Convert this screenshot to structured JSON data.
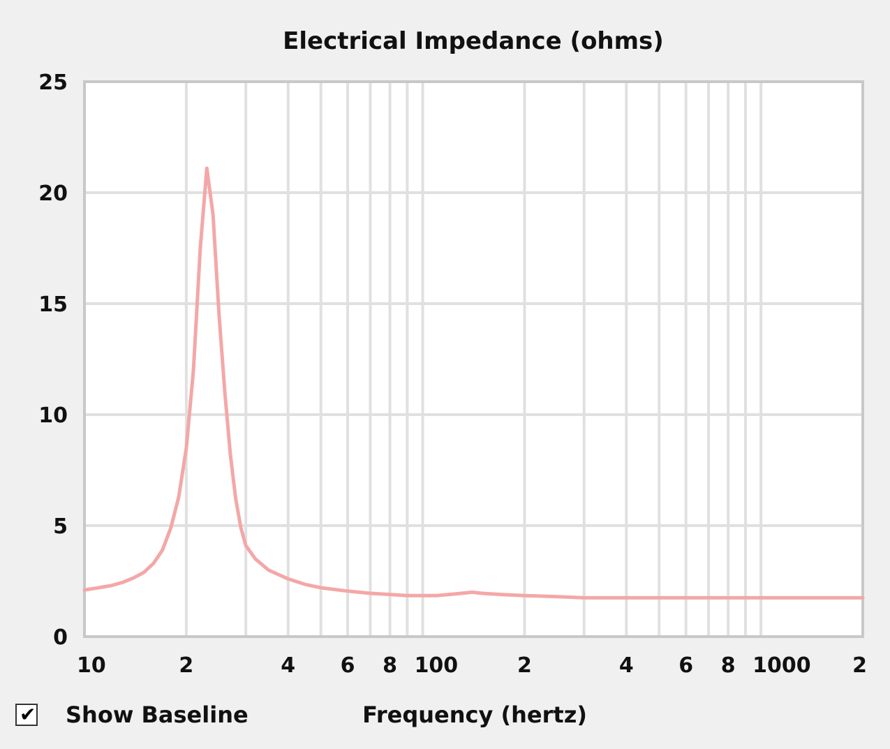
{
  "chart_data": {
    "type": "line",
    "title": "Electrical Impedance (ohms)",
    "xlabel": "Frequency (hertz)",
    "ylabel": "",
    "x_scale": "log",
    "xlim": [
      10,
      2000
    ],
    "ylim": [
      0,
      25
    ],
    "grid": true,
    "y_ticks": [
      0,
      5,
      10,
      15,
      20,
      25
    ],
    "x_tick_labels": [
      {
        "value": 10,
        "label": "10"
      },
      {
        "value": 20,
        "label": "2"
      },
      {
        "value": 40,
        "label": "4"
      },
      {
        "value": 60,
        "label": "6"
      },
      {
        "value": 80,
        "label": "8"
      },
      {
        "value": 100,
        "label": "100"
      },
      {
        "value": 200,
        "label": "2"
      },
      {
        "value": 400,
        "label": "4"
      },
      {
        "value": 600,
        "label": "6"
      },
      {
        "value": 800,
        "label": "8"
      },
      {
        "value": 1000,
        "label": "1000"
      },
      {
        "value": 2000,
        "label": "2"
      }
    ],
    "x_gridlines": [
      20,
      30,
      40,
      50,
      60,
      70,
      80,
      90,
      100,
      200,
      300,
      400,
      500,
      600,
      700,
      800,
      900,
      1000
    ],
    "series": [
      {
        "color": "#f4a7a7",
        "points": [
          [
            10,
            2.1
          ],
          [
            11,
            2.2
          ],
          [
            12,
            2.3
          ],
          [
            13,
            2.45
          ],
          [
            14,
            2.65
          ],
          [
            15,
            2.9
          ],
          [
            16,
            3.3
          ],
          [
            17,
            3.9
          ],
          [
            18,
            4.9
          ],
          [
            19,
            6.3
          ],
          [
            20,
            8.5
          ],
          [
            21,
            12.0
          ],
          [
            22,
            17.5
          ],
          [
            23,
            21.1
          ],
          [
            24,
            19.0
          ],
          [
            25,
            14.5
          ],
          [
            26,
            11.0
          ],
          [
            27,
            8.2
          ],
          [
            28,
            6.2
          ],
          [
            29,
            4.9
          ],
          [
            30,
            4.1
          ],
          [
            32,
            3.5
          ],
          [
            35,
            3.0
          ],
          [
            40,
            2.6
          ],
          [
            45,
            2.35
          ],
          [
            50,
            2.2
          ],
          [
            60,
            2.05
          ],
          [
            70,
            1.95
          ],
          [
            80,
            1.9
          ],
          [
            90,
            1.85
          ],
          [
            100,
            1.85
          ],
          [
            110,
            1.85
          ],
          [
            120,
            1.9
          ],
          [
            130,
            1.95
          ],
          [
            140,
            2.0
          ],
          [
            150,
            1.95
          ],
          [
            170,
            1.9
          ],
          [
            200,
            1.85
          ],
          [
            250,
            1.8
          ],
          [
            300,
            1.75
          ],
          [
            400,
            1.75
          ],
          [
            600,
            1.75
          ],
          [
            1000,
            1.75
          ],
          [
            1500,
            1.75
          ],
          [
            2000,
            1.75
          ]
        ]
      }
    ]
  },
  "controls": {
    "show_baseline_label": "Show Baseline",
    "show_baseline_checked": true,
    "check_glyph": "✔"
  }
}
